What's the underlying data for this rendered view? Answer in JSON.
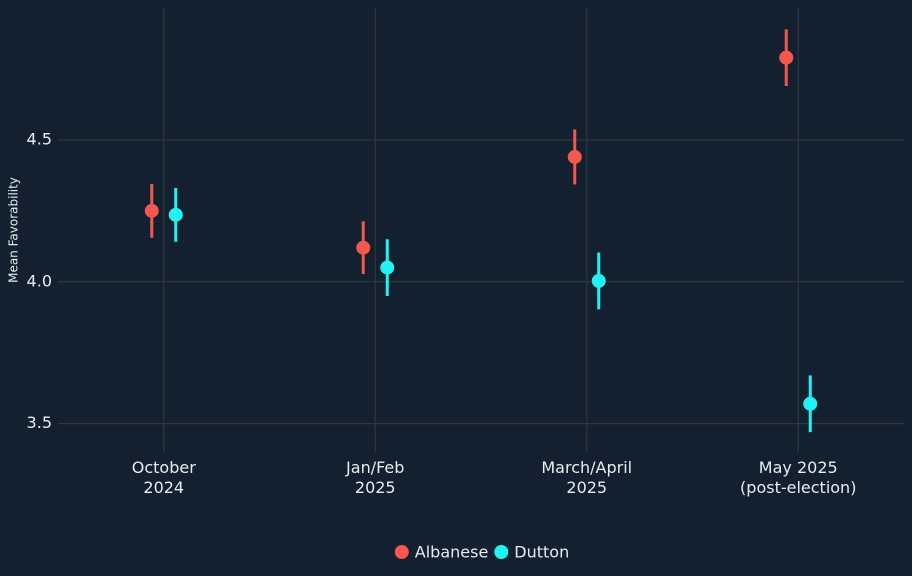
{
  "chart_data": {
    "type": "pointrange",
    "y_label": "Mean Favorability",
    "categories": [
      "October\n2024",
      "Jan/Feb\n2025",
      "March/April\n2025",
      "May 2025\n(post-election)"
    ],
    "series": [
      {
        "name": "Albanese",
        "color": "#f5574f",
        "values": [
          4.25,
          4.12,
          4.44,
          4.79
        ],
        "errors": [
          0.095,
          0.093,
          0.097,
          0.1
        ]
      },
      {
        "name": "Dutton",
        "color": "#1ff4f4",
        "values": [
          4.236,
          4.05,
          4.003,
          3.57
        ],
        "errors": [
          0.095,
          0.1,
          0.1,
          0.1
        ]
      }
    ],
    "ylim": [
      3.4,
      4.965
    ],
    "yticks": [
      3.5,
      {
        "value": 4,
        "label": "4.0"
      },
      4.5
    ],
    "grid": true,
    "legend": "bottom"
  }
}
